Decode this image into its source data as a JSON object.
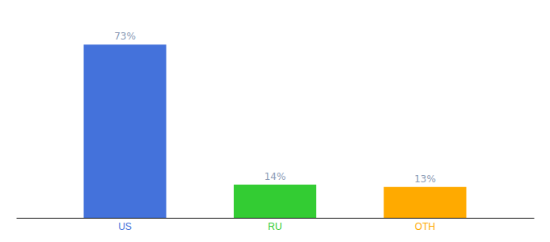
{
  "chart_data": {
    "type": "bar",
    "categories": [
      "US",
      "RU",
      "OTH"
    ],
    "values": [
      73,
      14,
      13
    ],
    "value_labels": [
      "73%",
      "14%",
      "13%"
    ],
    "colors": [
      "#4472db",
      "#33cc33",
      "#ffaa00"
    ],
    "ylim": [
      0,
      85
    ],
    "data_labels": true,
    "tick_labels": "x"
  }
}
